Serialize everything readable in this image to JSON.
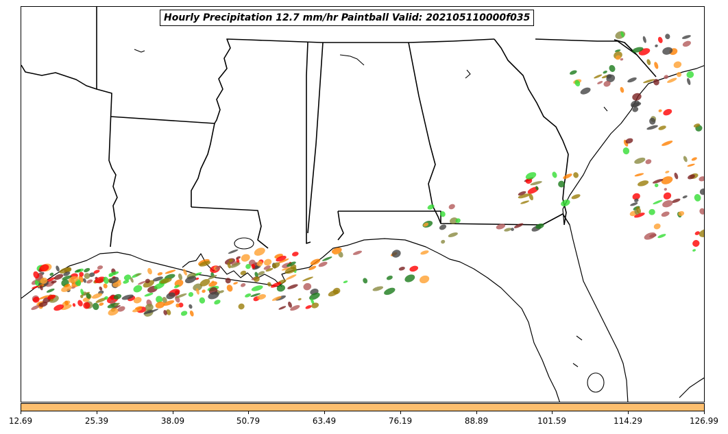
{
  "title": "Hourly Precipitation 12.7 mm/hr Paintball Valid: 202105110000f035",
  "colorbar": {
    "color": "#fdbf6f",
    "ticks": [
      "12.69",
      "25.39",
      "38.09",
      "50.79",
      "63.49",
      "76.19",
      "88.89",
      "101.59",
      "114.29",
      "126.99"
    ]
  },
  "paintball_colors": [
    "#ff0000",
    "#33dd33",
    "#ff7f00",
    "#9a7d0a",
    "#1a7a1a",
    "#444444",
    "#7a2020",
    "#ffa030",
    "#8a8a40",
    "#b35a5a"
  ]
}
